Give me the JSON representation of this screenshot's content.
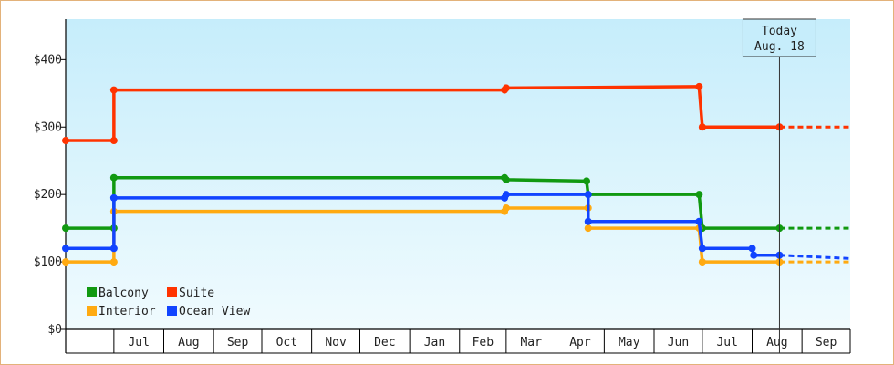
{
  "chart_data": {
    "type": "line",
    "step": true,
    "title": "",
    "xlabel": "",
    "ylabel": "",
    "x_domain": [
      "2023-06-01",
      "2024-10-01"
    ],
    "ylim": [
      0,
      460
    ],
    "y_ticks": [
      0,
      100,
      200,
      300,
      400
    ],
    "y_tick_labels": [
      "$0",
      "$100",
      "$200",
      "$300",
      "$400"
    ],
    "x_ticks": [
      {
        "label": "Jul",
        "date": "2023-07-01"
      },
      {
        "label": "Aug",
        "date": "2023-08-01"
      },
      {
        "label": "Sep",
        "date": "2023-09-01"
      },
      {
        "label": "Oct",
        "date": "2023-10-01"
      },
      {
        "label": "Nov",
        "date": "2023-11-01"
      },
      {
        "label": "Dec",
        "date": "2023-12-01"
      },
      {
        "label": "Jan",
        "date": "2024-01-01"
      },
      {
        "label": "Feb",
        "date": "2024-02-01"
      },
      {
        "label": "Mar",
        "date": "2024-03-01"
      },
      {
        "label": "Apr",
        "date": "2024-04-01"
      },
      {
        "label": "May",
        "date": "2024-05-01"
      },
      {
        "label": "Jun",
        "date": "2024-06-01"
      },
      {
        "label": "Jul",
        "date": "2024-07-01"
      },
      {
        "label": "Aug",
        "date": "2024-08-01"
      },
      {
        "label": "Sep",
        "date": "2024-09-01"
      }
    ],
    "today": {
      "date": "2024-08-18",
      "line1": "Today",
      "line2": "Aug. 18"
    },
    "projection_end": "2024-10-01",
    "legend": {
      "placement": "bottom-left"
    },
    "series": [
      {
        "name": "Balcony",
        "color": "#119911",
        "points": [
          {
            "x": "2023-06-01",
            "y": 150
          },
          {
            "x": "2023-07-01",
            "y": 150
          },
          {
            "x": "2023-07-01",
            "y": 225
          },
          {
            "x": "2024-02-29",
            "y": 225
          },
          {
            "x": "2024-03-01",
            "y": 222
          },
          {
            "x": "2024-04-20",
            "y": 220
          },
          {
            "x": "2024-04-21",
            "y": 200
          },
          {
            "x": "2024-06-29",
            "y": 200
          },
          {
            "x": "2024-07-01",
            "y": 150
          },
          {
            "x": "2024-08-18",
            "y": 150
          }
        ],
        "projection": 150
      },
      {
        "name": "Suite",
        "color": "#ff3300",
        "points": [
          {
            "x": "2023-06-01",
            "y": 280
          },
          {
            "x": "2023-07-01",
            "y": 280
          },
          {
            "x": "2023-07-01",
            "y": 355
          },
          {
            "x": "2024-02-29",
            "y": 355
          },
          {
            "x": "2024-03-01",
            "y": 358
          },
          {
            "x": "2024-06-29",
            "y": 360
          },
          {
            "x": "2024-07-01",
            "y": 300
          },
          {
            "x": "2024-08-18",
            "y": 300
          }
        ],
        "projection": 300
      },
      {
        "name": "Interior",
        "color": "#ffaa11",
        "points": [
          {
            "x": "2023-06-01",
            "y": 100
          },
          {
            "x": "2023-07-01",
            "y": 100
          },
          {
            "x": "2023-07-01",
            "y": 175
          },
          {
            "x": "2024-02-29",
            "y": 175
          },
          {
            "x": "2024-03-01",
            "y": 180
          },
          {
            "x": "2024-04-21",
            "y": 180
          },
          {
            "x": "2024-04-21",
            "y": 150
          },
          {
            "x": "2024-06-29",
            "y": 150
          },
          {
            "x": "2024-07-01",
            "y": 100
          },
          {
            "x": "2024-08-18",
            "y": 100
          }
        ],
        "projection": 100
      },
      {
        "name": "Ocean View",
        "color": "#1144ff",
        "points": [
          {
            "x": "2023-06-01",
            "y": 120
          },
          {
            "x": "2023-07-01",
            "y": 120
          },
          {
            "x": "2023-07-01",
            "y": 195
          },
          {
            "x": "2024-02-29",
            "y": 195
          },
          {
            "x": "2024-03-01",
            "y": 200
          },
          {
            "x": "2024-04-21",
            "y": 200
          },
          {
            "x": "2024-04-21",
            "y": 160
          },
          {
            "x": "2024-06-29",
            "y": 160
          },
          {
            "x": "2024-07-01",
            "y": 120
          },
          {
            "x": "2024-08-01",
            "y": 120
          },
          {
            "x": "2024-08-02",
            "y": 110
          },
          {
            "x": "2024-08-18",
            "y": 110
          }
        ],
        "projection": 105
      }
    ]
  }
}
